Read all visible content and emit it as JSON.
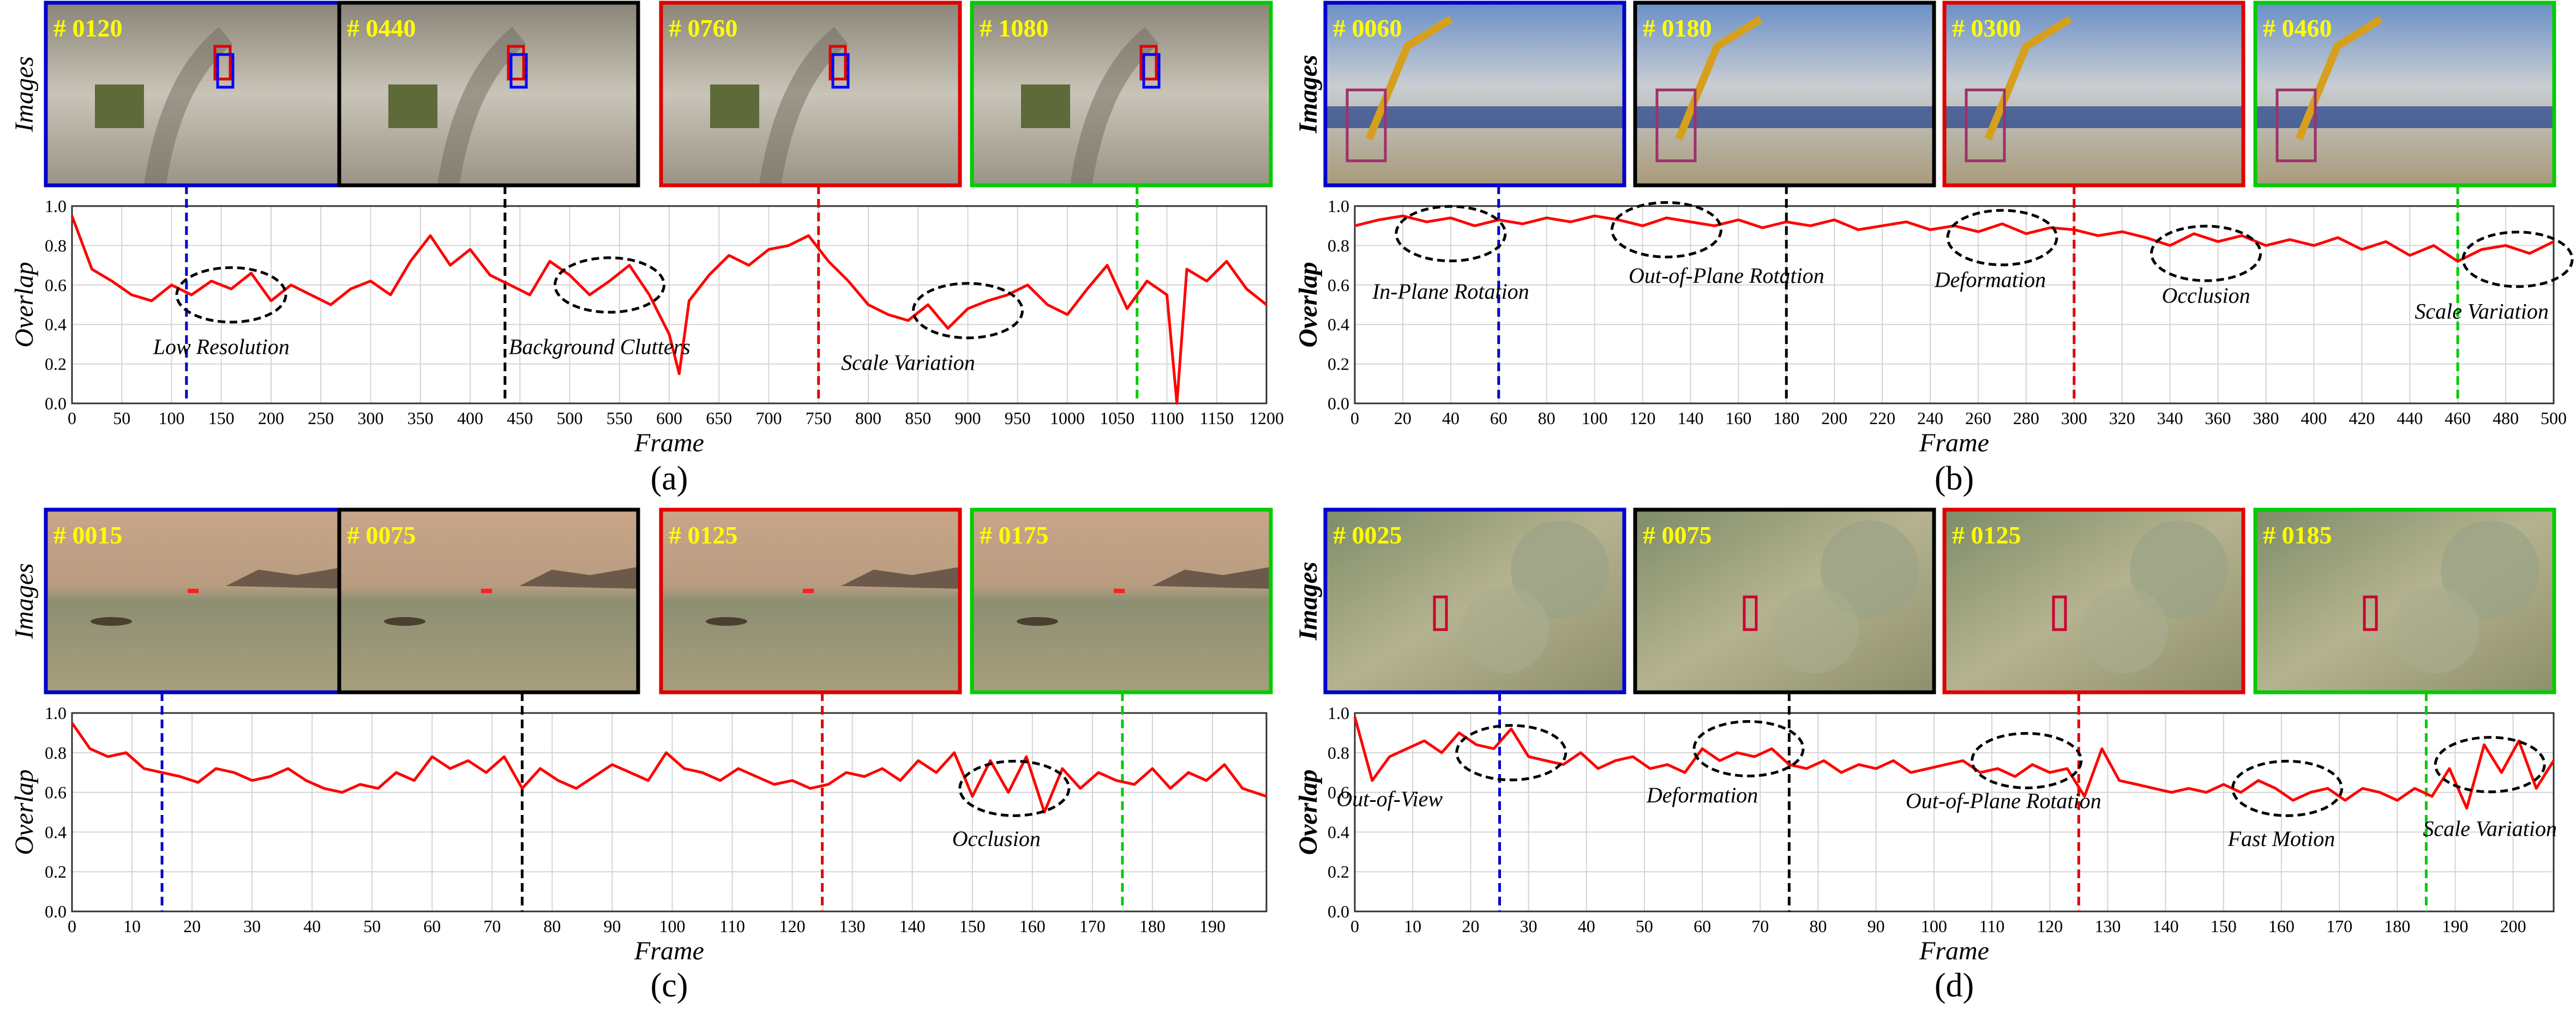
{
  "colors": {
    "series": "#ff0000",
    "marker_colors": [
      "#0000cc",
      "#000000",
      "#e00000",
      "#00cc00"
    ],
    "annotation_ellipse": "#000000",
    "frame_label": "#ffff00"
  },
  "axis_labels": {
    "images": "Images",
    "overlap": "Overlap",
    "frame": "Frame"
  },
  "chart_data": [
    {
      "type": "line",
      "subcaption": "(a)",
      "frame_labels": [
        "# 0120",
        "# 0440",
        "# 0760",
        "# 1080"
      ],
      "scene": "dirt",
      "markers_x": [
        115,
        435,
        750,
        1070
      ],
      "xlim": [
        0,
        1200
      ],
      "xticks": [
        0,
        50,
        100,
        150,
        200,
        250,
        300,
        350,
        400,
        450,
        500,
        550,
        600,
        650,
        700,
        750,
        800,
        850,
        900,
        950,
        1000,
        1050,
        1100,
        1150,
        1200
      ],
      "ylim": [
        0,
        1.0
      ],
      "yticks": [
        "0.0",
        "0.2",
        "0.4",
        "0.6",
        "0.8",
        "1.0"
      ],
      "ylabel_bold": false,
      "series": {
        "x": [
          0,
          20,
          40,
          60,
          80,
          100,
          120,
          140,
          160,
          180,
          200,
          220,
          240,
          260,
          280,
          300,
          320,
          340,
          360,
          380,
          400,
          420,
          440,
          460,
          480,
          500,
          520,
          540,
          560,
          580,
          600,
          610,
          620,
          640,
          660,
          680,
          700,
          720,
          740,
          760,
          780,
          800,
          820,
          840,
          860,
          880,
          900,
          920,
          940,
          960,
          980,
          1000,
          1020,
          1040,
          1060,
          1080,
          1100,
          1110,
          1120,
          1140,
          1160,
          1180,
          1200
        ],
        "y": [
          0.95,
          0.68,
          0.62,
          0.55,
          0.52,
          0.6,
          0.55,
          0.62,
          0.58,
          0.66,
          0.52,
          0.6,
          0.55,
          0.5,
          0.58,
          0.62,
          0.55,
          0.72,
          0.85,
          0.7,
          0.78,
          0.65,
          0.6,
          0.55,
          0.72,
          0.65,
          0.55,
          0.62,
          0.7,
          0.55,
          0.35,
          0.15,
          0.52,
          0.65,
          0.75,
          0.7,
          0.78,
          0.8,
          0.85,
          0.72,
          0.62,
          0.5,
          0.45,
          0.42,
          0.5,
          0.38,
          0.48,
          0.52,
          0.55,
          0.6,
          0.5,
          0.45,
          0.58,
          0.7,
          0.48,
          0.62,
          0.55,
          0.0,
          0.68,
          0.62,
          0.72,
          0.58,
          0.5
        ]
      },
      "annotations": [
        {
          "text": "Low Resolution",
          "x": 150,
          "y": 0.25,
          "ex": 160,
          "ey": 0.55
        },
        {
          "text": "Background Clutters",
          "x": 530,
          "y": 0.25,
          "ex": 540,
          "ey": 0.6
        },
        {
          "text": "Scale Variation",
          "x": 840,
          "y": 0.17,
          "ex": 900,
          "ey": 0.47
        }
      ]
    },
    {
      "type": "line",
      "subcaption": "(b)",
      "frame_labels": [
        "# 0060",
        "# 0180",
        "# 0300",
        "# 0460"
      ],
      "scene": "construction",
      "markers_x": [
        60,
        180,
        300,
        460
      ],
      "xlim": [
        0,
        500
      ],
      "xticks": [
        0,
        20,
        40,
        60,
        80,
        100,
        120,
        140,
        160,
        180,
        200,
        220,
        240,
        260,
        280,
        300,
        320,
        340,
        360,
        380,
        400,
        420,
        440,
        460,
        480,
        500
      ],
      "ylim": [
        0,
        1.0
      ],
      "yticks": [
        "0.0",
        "0.2",
        "0.4",
        "0.6",
        "0.8",
        "1.0"
      ],
      "ylabel_bold": true,
      "series": {
        "x": [
          0,
          10,
          20,
          30,
          40,
          50,
          60,
          70,
          80,
          90,
          100,
          110,
          120,
          130,
          140,
          150,
          160,
          170,
          180,
          190,
          200,
          210,
          220,
          230,
          240,
          250,
          260,
          270,
          280,
          290,
          300,
          310,
          320,
          330,
          340,
          350,
          360,
          370,
          380,
          390,
          400,
          410,
          420,
          430,
          440,
          450,
          460,
          470,
          480,
          490,
          500
        ],
        "y": [
          0.9,
          0.93,
          0.95,
          0.92,
          0.94,
          0.9,
          0.93,
          0.91,
          0.94,
          0.92,
          0.95,
          0.93,
          0.9,
          0.94,
          0.92,
          0.9,
          0.93,
          0.89,
          0.92,
          0.9,
          0.93,
          0.88,
          0.9,
          0.92,
          0.88,
          0.9,
          0.87,
          0.91,
          0.86,
          0.89,
          0.88,
          0.85,
          0.87,
          0.84,
          0.8,
          0.86,
          0.82,
          0.85,
          0.8,
          0.83,
          0.8,
          0.84,
          0.78,
          0.82,
          0.75,
          0.8,
          0.72,
          0.78,
          0.8,
          0.76,
          0.82
        ]
      },
      "annotations": [
        {
          "text": "In-Plane Rotation",
          "x": 40,
          "y": 0.53,
          "ex": 40,
          "ey": 0.86
        },
        {
          "text": "Out-of-Plane Rotation",
          "x": 155,
          "y": 0.61,
          "ex": 130,
          "ey": 0.88
        },
        {
          "text": "Deformation",
          "x": 265,
          "y": 0.59,
          "ex": 270,
          "ey": 0.84
        },
        {
          "text": "Occlusion",
          "x": 355,
          "y": 0.51,
          "ex": 355,
          "ey": 0.76
        },
        {
          "text": "Scale Variation",
          "x": 470,
          "y": 0.43,
          "ex": 485,
          "ey": 0.73
        }
      ]
    },
    {
      "type": "line",
      "subcaption": "(c)",
      "frame_labels": [
        "# 0015",
        "# 0075",
        "# 0125",
        "# 0175"
      ],
      "scene": "sea",
      "markers_x": [
        15,
        75,
        125,
        175
      ],
      "xlim": [
        0,
        199
      ],
      "xticks": [
        0,
        10,
        20,
        30,
        40,
        50,
        60,
        70,
        80,
        90,
        100,
        110,
        120,
        130,
        140,
        150,
        160,
        170,
        180,
        190
      ],
      "ylim": [
        0,
        1.0
      ],
      "yticks": [
        "0.0",
        "0.2",
        "0.4",
        "0.6",
        "0.8",
        "1.0"
      ],
      "ylabel_bold": false,
      "series": {
        "x": [
          0,
          3,
          6,
          9,
          12,
          15,
          18,
          21,
          24,
          27,
          30,
          33,
          36,
          39,
          42,
          45,
          48,
          51,
          54,
          57,
          60,
          63,
          66,
          69,
          72,
          75,
          78,
          81,
          84,
          87,
          90,
          93,
          96,
          99,
          102,
          105,
          108,
          111,
          114,
          117,
          120,
          123,
          126,
          129,
          132,
          135,
          138,
          141,
          144,
          147,
          150,
          153,
          156,
          159,
          162,
          165,
          168,
          171,
          174,
          177,
          180,
          183,
          186,
          189,
          192,
          195,
          199
        ],
        "y": [
          0.95,
          0.82,
          0.78,
          0.8,
          0.72,
          0.7,
          0.68,
          0.65,
          0.72,
          0.7,
          0.66,
          0.68,
          0.72,
          0.66,
          0.62,
          0.6,
          0.64,
          0.62,
          0.7,
          0.66,
          0.78,
          0.72,
          0.76,
          0.7,
          0.78,
          0.62,
          0.72,
          0.66,
          0.62,
          0.68,
          0.74,
          0.7,
          0.66,
          0.8,
          0.72,
          0.7,
          0.66,
          0.72,
          0.68,
          0.64,
          0.66,
          0.62,
          0.64,
          0.7,
          0.68,
          0.72,
          0.66,
          0.76,
          0.7,
          0.8,
          0.58,
          0.76,
          0.6,
          0.78,
          0.5,
          0.72,
          0.62,
          0.7,
          0.66,
          0.64,
          0.72,
          0.62,
          0.7,
          0.66,
          0.74,
          0.62,
          0.58
        ]
      },
      "annotations": [
        {
          "text": "Occlusion",
          "x": 154,
          "y": 0.33,
          "ex": 157,
          "ey": 0.62
        }
      ]
    },
    {
      "type": "line",
      "subcaption": "(d)",
      "frame_labels": [
        "# 0025",
        "# 0075",
        "# 0125",
        "# 0185"
      ],
      "scene": "aerial",
      "markers_x": [
        25,
        75,
        125,
        185
      ],
      "xlim": [
        0,
        207
      ],
      "xticks": [
        0,
        10,
        20,
        30,
        40,
        50,
        60,
        70,
        80,
        90,
        100,
        110,
        120,
        130,
        140,
        150,
        160,
        170,
        180,
        190,
        200
      ],
      "ylim": [
        0,
        1.0
      ],
      "yticks": [
        "0.0",
        "0.2",
        "0.4",
        "0.6",
        "0.8",
        "1.0"
      ],
      "ylabel_bold": true,
      "series": {
        "x": [
          0,
          3,
          6,
          9,
          12,
          15,
          18,
          21,
          24,
          27,
          30,
          33,
          36,
          39,
          42,
          45,
          48,
          51,
          54,
          57,
          60,
          63,
          66,
          69,
          72,
          75,
          78,
          81,
          84,
          87,
          90,
          93,
          96,
          99,
          102,
          105,
          108,
          111,
          114,
          117,
          120,
          123,
          126,
          129,
          132,
          135,
          138,
          141,
          144,
          147,
          150,
          153,
          156,
          159,
          162,
          165,
          168,
          171,
          174,
          177,
          180,
          183,
          186,
          189,
          192,
          195,
          198,
          201,
          204,
          207
        ],
        "y": [
          0.98,
          0.66,
          0.78,
          0.82,
          0.86,
          0.8,
          0.9,
          0.84,
          0.82,
          0.92,
          0.78,
          0.76,
          0.74,
          0.8,
          0.72,
          0.76,
          0.78,
          0.72,
          0.74,
          0.7,
          0.82,
          0.76,
          0.8,
          0.78,
          0.82,
          0.74,
          0.72,
          0.76,
          0.7,
          0.74,
          0.72,
          0.76,
          0.7,
          0.72,
          0.74,
          0.76,
          0.7,
          0.72,
          0.68,
          0.74,
          0.7,
          0.72,
          0.58,
          0.82,
          0.66,
          0.64,
          0.62,
          0.6,
          0.62,
          0.6,
          0.64,
          0.6,
          0.66,
          0.62,
          0.56,
          0.6,
          0.62,
          0.56,
          0.62,
          0.6,
          0.56,
          0.62,
          0.58,
          0.72,
          0.52,
          0.84,
          0.7,
          0.86,
          0.62,
          0.76
        ]
      },
      "annotations": [
        {
          "text": "Out-of-View",
          "x": 6,
          "y": 0.53,
          "ex": 27,
          "ey": 0.8
        },
        {
          "text": "Deformation",
          "x": 60,
          "y": 0.55,
          "ex": 68,
          "ey": 0.82
        },
        {
          "text": "Out-of-Plane Rotation",
          "x": 112,
          "y": 0.52,
          "ex": 116,
          "ey": 0.76
        },
        {
          "text": "Fast Motion",
          "x": 160,
          "y": 0.33,
          "ex": 161,
          "ey": 0.62
        },
        {
          "text": "Scale Variation",
          "x": 196,
          "y": 0.38,
          "ex": 196,
          "ey": 0.74
        }
      ]
    }
  ]
}
